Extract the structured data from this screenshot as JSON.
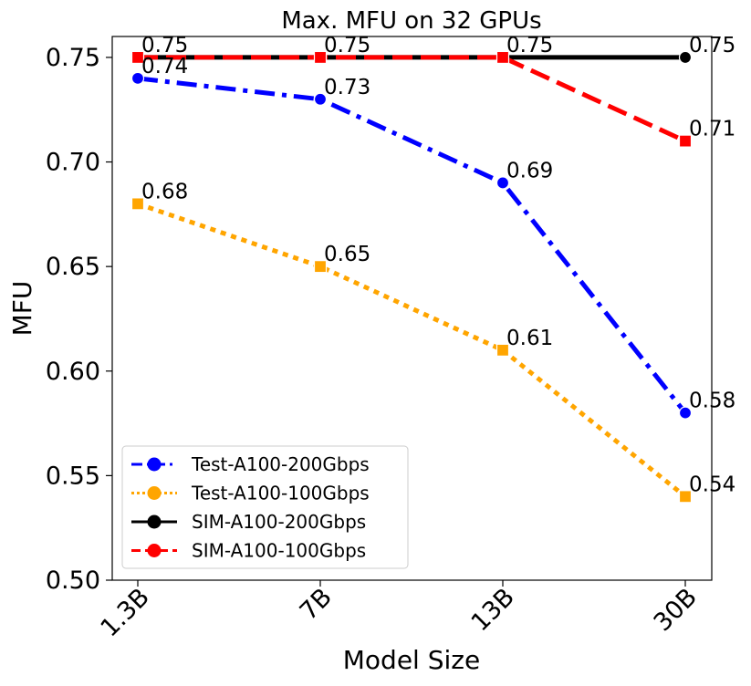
{
  "chart_data": {
    "type": "line",
    "title": "Max. MFU on 32 GPUs",
    "xlabel": "Model Size",
    "ylabel": "MFU",
    "categories": [
      "1.3B",
      "7B",
      "13B",
      "30B"
    ],
    "ylim": [
      0.5,
      0.76
    ],
    "yticks": [
      0.5,
      0.55,
      0.6,
      0.65,
      0.7,
      0.75
    ],
    "ytick_labels": [
      "0.50",
      "0.55",
      "0.60",
      "0.65",
      "0.70",
      "0.75"
    ],
    "grid": false,
    "legend_position": "lower-left",
    "series": [
      {
        "name": "Test-A100-200Gbps",
        "values": [
          0.74,
          0.73,
          0.69,
          0.58
        ],
        "labels": [
          "0.74",
          "0.73",
          "0.69",
          "0.58"
        ],
        "color": "#0000ff",
        "dash": "dashdot",
        "marker": "circle"
      },
      {
        "name": "Test-A100-100Gbps",
        "values": [
          0.68,
          0.65,
          0.61,
          0.54
        ],
        "labels": [
          "0.68",
          "0.65",
          "0.61",
          "0.54"
        ],
        "color": "#ffa500",
        "dash": "dotted",
        "marker": "square"
      },
      {
        "name": "SIM-A100-200Gbps",
        "values": [
          0.75,
          0.75,
          0.75,
          0.75
        ],
        "labels": [
          "",
          "",
          "",
          "0.75"
        ],
        "color": "#000000",
        "dash": "solid",
        "marker": "circle"
      },
      {
        "name": "SIM-A100-100Gbps",
        "values": [
          0.75,
          0.75,
          0.75,
          0.71
        ],
        "labels": [
          "0.75",
          "0.75",
          "0.75",
          "0.71"
        ],
        "color": "#ff0000",
        "dash": "dashed",
        "marker": "square"
      }
    ]
  }
}
